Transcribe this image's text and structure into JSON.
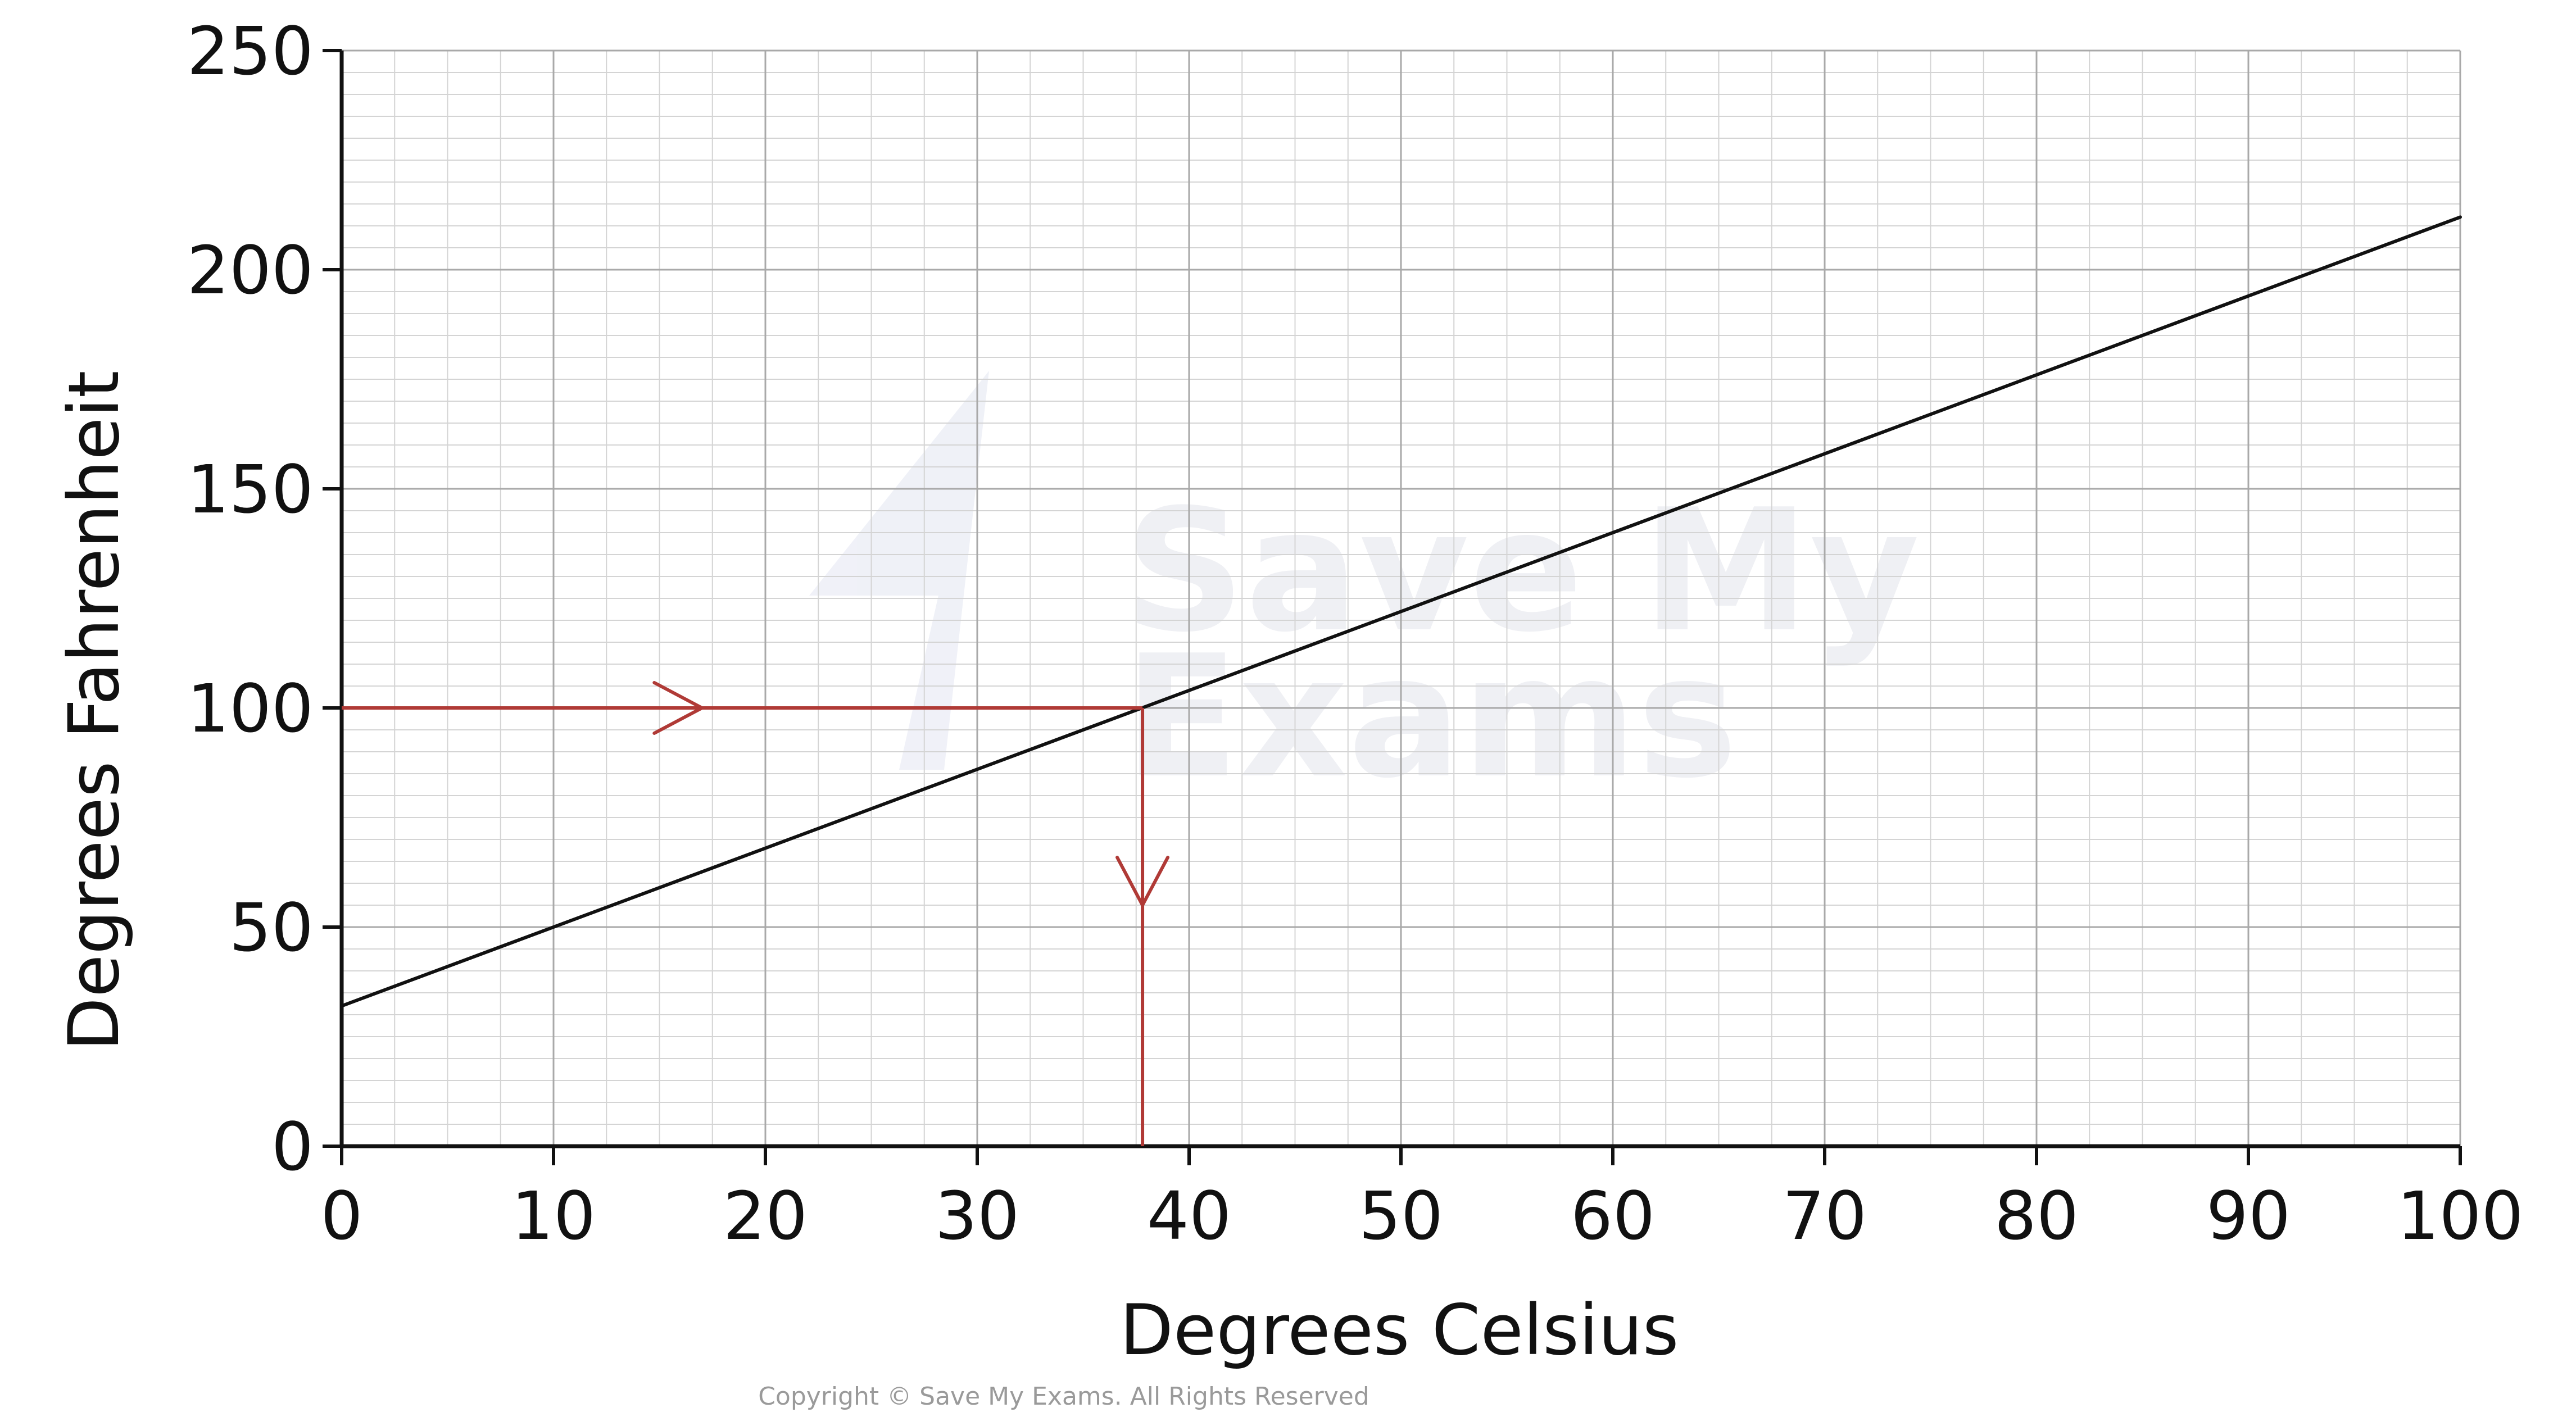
{
  "chart_data": {
    "type": "line",
    "title": "",
    "xlabel": "Degrees Celsius",
    "ylabel": "Degrees Fahrenheit",
    "xlim": [
      0,
      100
    ],
    "ylim": [
      0,
      250
    ],
    "x_ticks": [
      0,
      10,
      20,
      30,
      40,
      50,
      60,
      70,
      80,
      90,
      100
    ],
    "y_ticks": [
      0,
      50,
      100,
      150,
      200,
      250
    ],
    "x_tick_labels": [
      "0",
      "10",
      "20",
      "30",
      "40",
      "50",
      "60",
      "70",
      "80",
      "90",
      "100"
    ],
    "y_tick_labels": [
      "0",
      "50",
      "100",
      "150",
      "200",
      "250"
    ],
    "grid": true,
    "grid_minor_x": 2,
    "grid_minor_y": 5,
    "series": [
      {
        "x": [
          0,
          100
        ],
        "y": [
          32,
          212
        ],
        "color": "#111111"
      }
    ],
    "annotations": [
      {
        "type": "reading-path",
        "from_y": 100,
        "to_x": 37.8,
        "color": "#b03a36"
      }
    ]
  },
  "footer": {
    "copyright": "Copyright © Save My Exams. All Rights Reserved"
  },
  "watermark": {
    "line1": "Save My",
    "line2": "Exams"
  },
  "colors": {
    "grid_minor": "#d4d4d4",
    "grid_major": "#a9a9a9",
    "axis": "#111111",
    "annotation": "#b03a36"
  }
}
